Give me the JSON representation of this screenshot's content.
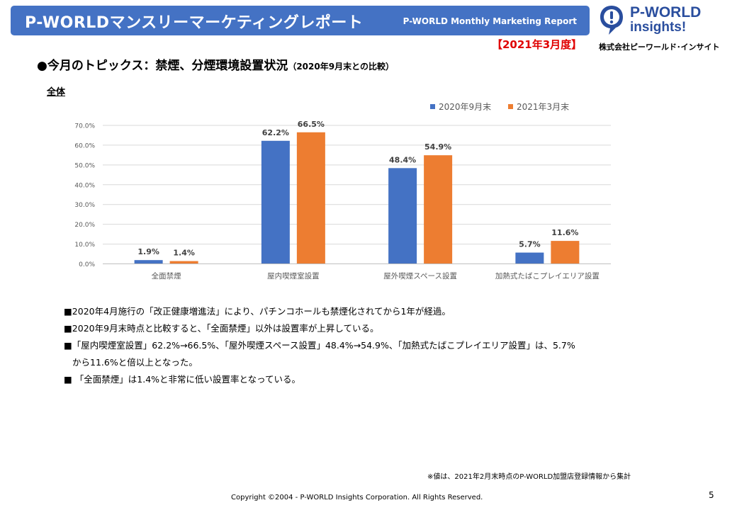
{
  "header": {
    "title": "P-WORLDマンスリーマーケティングレポート",
    "subtitle": "P-WORLD Monthly Marketing Report"
  },
  "logo": {
    "name": "P-WORLD",
    "tagline": "insights!",
    "company": "株式会社ピーワールド･インサイト",
    "icon": "exclamation-bubble-icon"
  },
  "period": "【2021年3月度】",
  "topic": {
    "title": "●今月のトピックス：禁煙、分煙環境設置状況",
    "note": "（2020年9月末との比較）"
  },
  "section_label": "全体",
  "colors": {
    "header": "#4472c4",
    "series1": "#4472c4",
    "series2": "#ed7d31",
    "period": "#e00000"
  },
  "chart_data": {
    "type": "bar",
    "categories": [
      "全面禁煙",
      "屋内喫煙室設置",
      "屋外喫煙スペース設置",
      "加熱式たばこプレイエリア設置"
    ],
    "series": [
      {
        "name": "2020年9月末",
        "values": [
          1.9,
          62.2,
          48.4,
          5.7
        ],
        "labels": [
          "1.9%",
          "62.2%",
          "48.4%",
          "5.7%"
        ]
      },
      {
        "name": "2021年3月末",
        "values": [
          1.4,
          66.5,
          54.9,
          11.6
        ],
        "labels": [
          "1.4%",
          "66.5%",
          "54.9%",
          "11.6%"
        ]
      }
    ],
    "y_ticks": [
      "0.0%",
      "10.0%",
      "20.0%",
      "30.0%",
      "40.0%",
      "50.0%",
      "60.0%",
      "70.0%"
    ],
    "ylim": [
      0,
      70
    ],
    "grid": true,
    "legend_position": "top-right"
  },
  "notes": [
    "■2020年4月施行の「改正健康増進法」により、パチンコホールも禁煙化されてから1年が経過。",
    "■2020年9月末時点と比較すると、「全面禁煙」以外は設置率が上昇している。",
    "■「屋内喫煙室設置」62.2%→66.5%、「屋外喫煙スペース設置」48.4%→54.9%、「加熱式たばこプレイエリア設置」は、5.7%",
    "から11.6%と倍以上となった。",
    "■ 「全面禁煙」は1.4%と非常に低い設置率となっている。"
  ],
  "footnote": "※値は、2021年2月末時点のP-WORLD加盟店登録情報から集計",
  "copyright": "Copyright ©2004 - P-WORLD Insights Corporation. All Rights Reserved.",
  "page_number": "5"
}
